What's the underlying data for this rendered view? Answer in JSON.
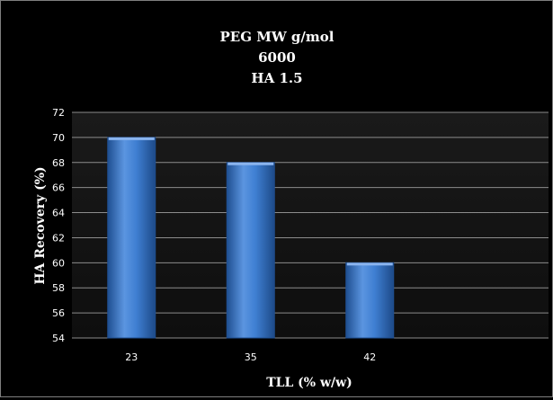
{
  "chart_data": {
    "type": "bar",
    "title": [
      "PEG MW g/mol",
      "6000",
      "HA 1.5"
    ],
    "xlabel": "TLL (% w/w)",
    "ylabel": "HA Recovery (%)",
    "categories": [
      "23",
      "35",
      "42",
      ""
    ],
    "values": [
      70,
      68,
      60,
      null
    ],
    "ylim": [
      54,
      72
    ],
    "ytick_step": 2,
    "grid": true,
    "legend": "none",
    "colors": {
      "background": "#000000",
      "plot_area": "#141414",
      "grid": "#8c8c8c",
      "bar": "#3f7fd2",
      "bar_light": "#8ab4ee",
      "bar_dark": "#1f4f91",
      "text": "#ffffff"
    }
  }
}
